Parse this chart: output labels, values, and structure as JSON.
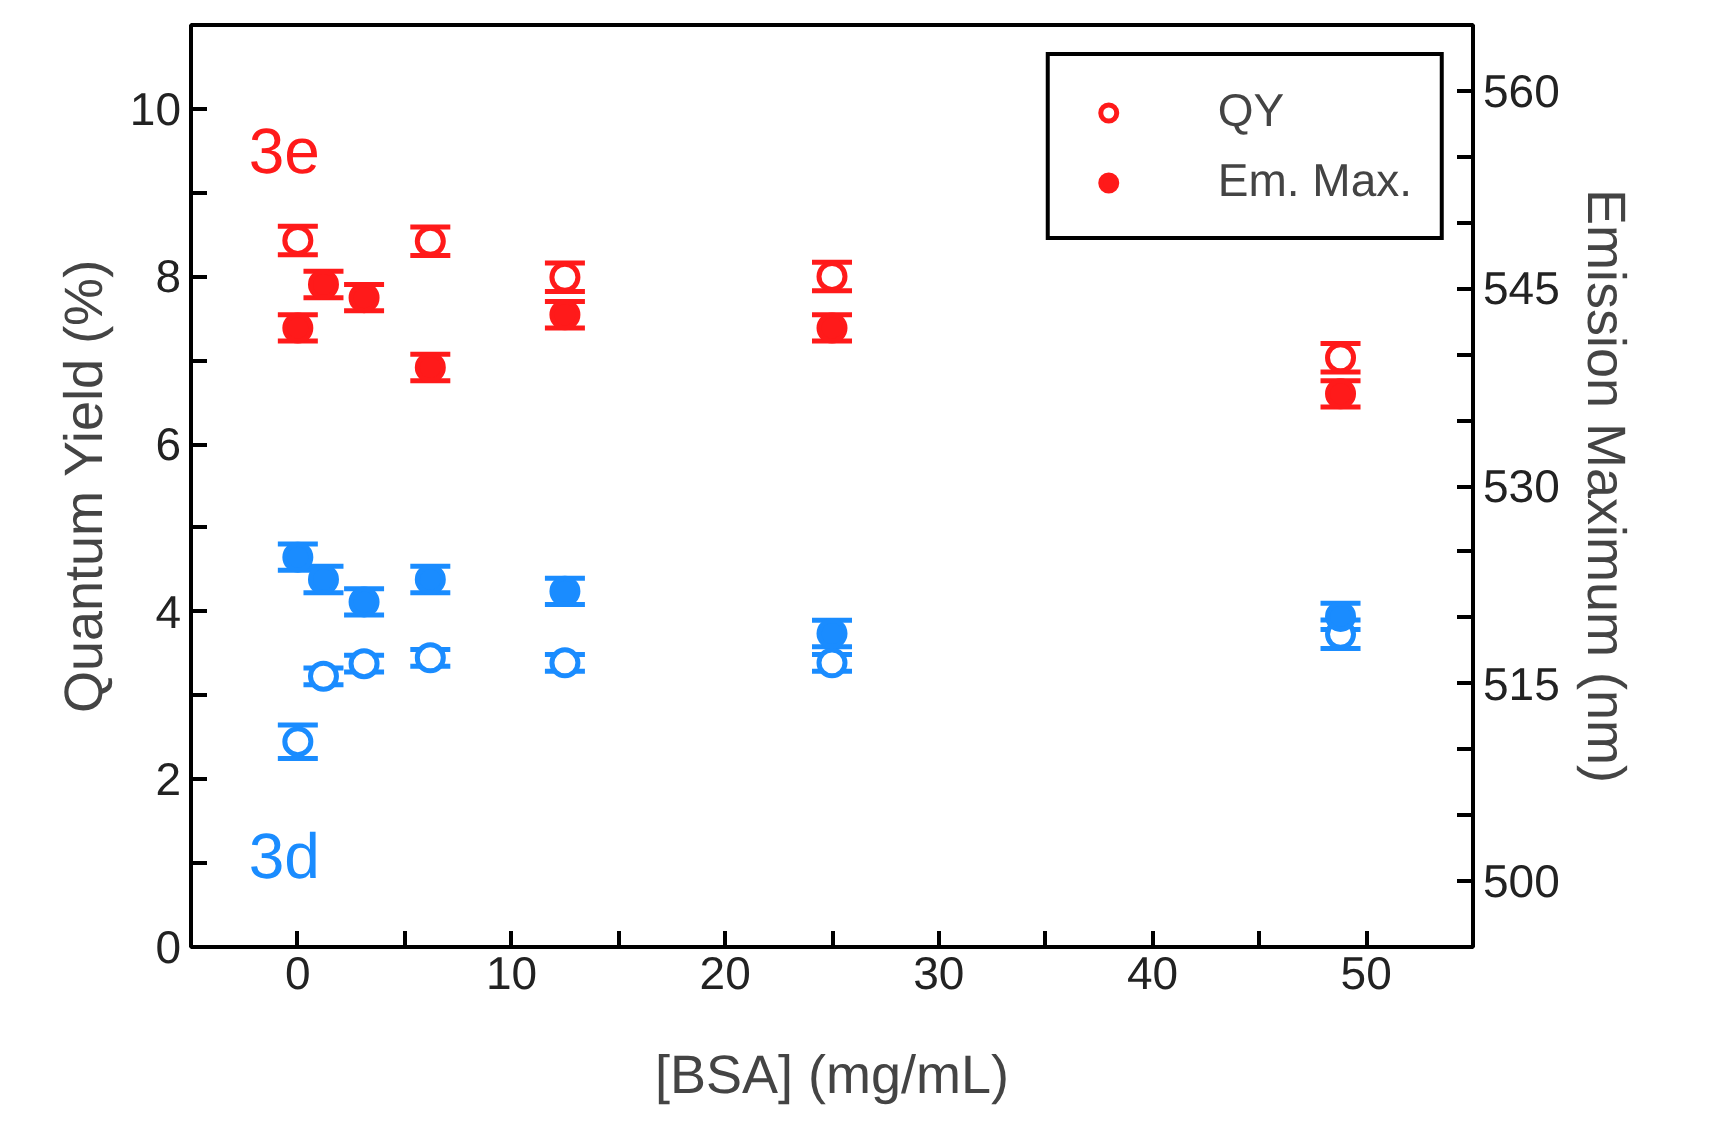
{
  "chart_data": {
    "type": "scatter",
    "xlabel": "[BSA] (mg/mL)",
    "ylabel": "Quantum Yield (%)",
    "y2label": "Emission Maximum (nm)",
    "x": [
      0,
      1.2,
      3.1,
      6.2,
      12.5,
      25,
      48.8
    ],
    "series": [
      {
        "name": "QY",
        "color": "#ff1a1a",
        "values": [
          8.43,
          null,
          null,
          8.42,
          7.99,
          8.0,
          7.03
        ],
        "errors": [
          0.17,
          null,
          null,
          0.17,
          0.17,
          0.17,
          0.17
        ]
      },
      {
        "name": "Em. Max.",
        "color": "#ff1a1a",
        "axis": "y2",
        "values": [
          542.0,
          545.3,
          544.3,
          539.0,
          543.0,
          542.0,
          537.0
        ],
        "errors": [
          1,
          1,
          1,
          1,
          1,
          1,
          1
        ]
      },
      {
        "color": "#1a8cff",
        "values": [
          2.45,
          3.23,
          3.38,
          3.45,
          3.39,
          3.39,
          3.73
        ],
        "errors": [
          0.2,
          0.1,
          0.1,
          0.1,
          0.1,
          0.1,
          0.17
        ]
      },
      {
        "color": "#1a8cff",
        "axis": "y2",
        "values": [
          524.6,
          522.9,
          521.2,
          522.9,
          522.0,
          518.8,
          520.1
        ],
        "errors": [
          1,
          1,
          1,
          1,
          1,
          1,
          1
        ]
      }
    ],
    "annotations": [
      "3e",
      "3d"
    ],
    "xlim": [
      -5,
      55
    ],
    "ylim": [
      0,
      11
    ],
    "y2lim": [
      495,
      565
    ],
    "xticks": [
      0,
      {
        "value": 5,
        "label": null
      },
      10,
      {
        "value": 15,
        "label": null
      },
      20,
      {
        "value": 25,
        "label": null
      },
      30,
      {
        "value": 35,
        "label": null
      },
      40,
      {
        "value": 45,
        "label": null
      },
      50
    ],
    "yticks": [
      0,
      {
        "value": 1,
        "label": null
      },
      2,
      {
        "value": 3,
        "label": null
      },
      4,
      {
        "value": 5,
        "label": null
      },
      6,
      {
        "value": 7,
        "label": null
      },
      8,
      {
        "value": 9,
        "label": null
      },
      10
    ],
    "y2ticks": [
      500,
      {
        "value": 505,
        "label": null
      },
      {
        "value": 510,
        "label": null
      },
      515,
      {
        "value": 520,
        "label": null
      },
      {
        "value": 525,
        "label": null
      },
      530,
      {
        "value": 535,
        "label": null
      },
      {
        "value": 540,
        "label": null
      },
      545,
      {
        "value": 550,
        "label": null
      },
      {
        "value": 555,
        "label": null
      },
      560
    ],
    "marker": "circle",
    "legend": "top right",
    "grid": false
  }
}
